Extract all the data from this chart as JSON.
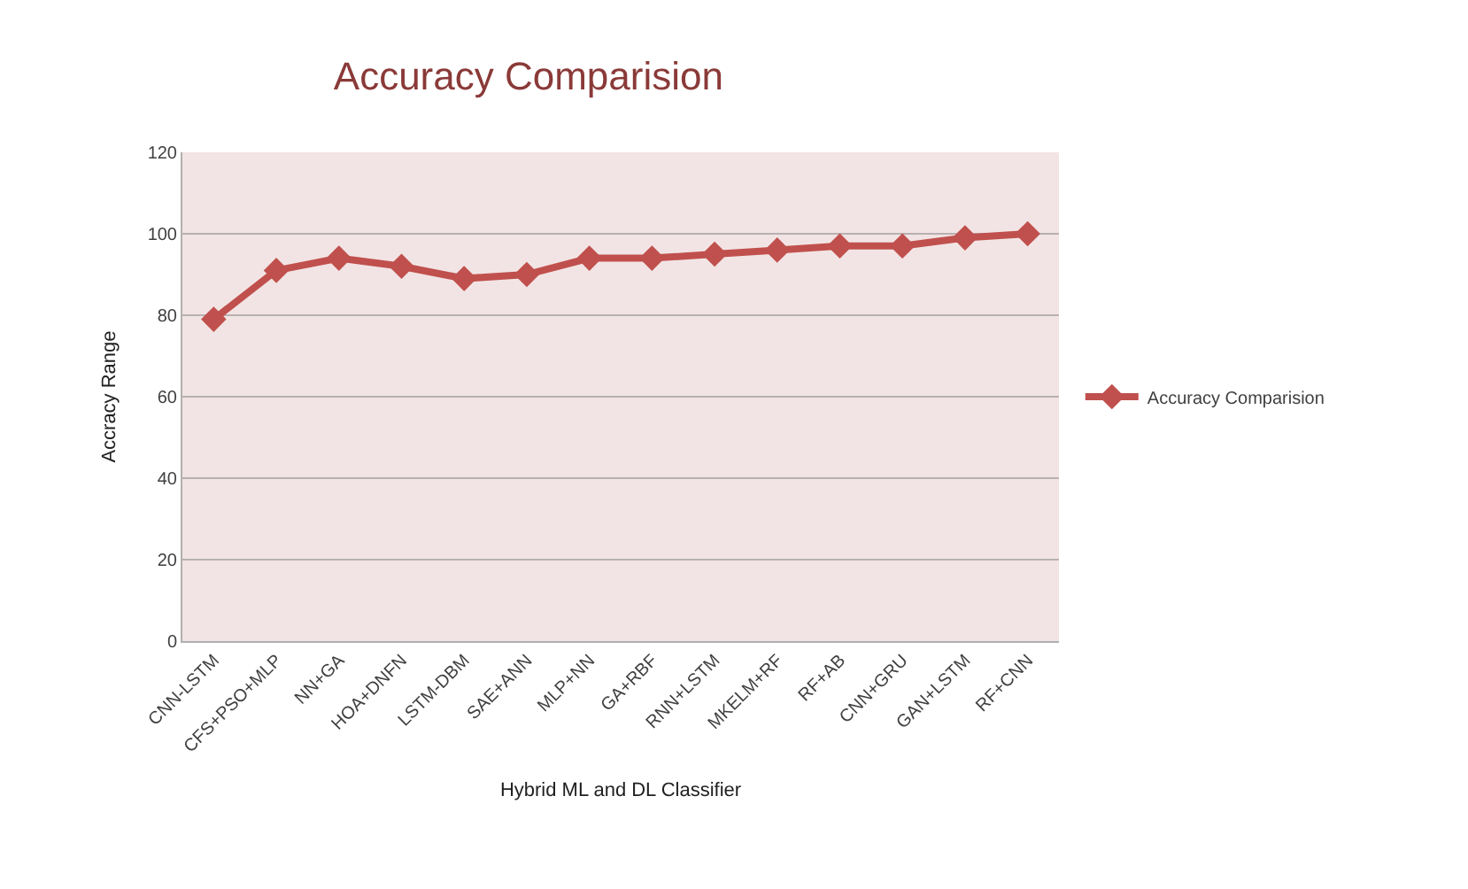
{
  "chart_data": {
    "type": "line",
    "title": "Accuracy Comparision",
    "xlabel": "Hybrid ML and DL Classifier",
    "ylabel": "Accracy Range",
    "categories": [
      "CNN-LSTM",
      "CFS+PSO+MLP",
      "NN+GA",
      "HOA+DNFN",
      "LSTM-DBM",
      "SAE+ANN",
      "MLP+NN",
      "GA+RBF",
      "RNN+LSTM",
      "MKELM+RF",
      "RF+AB",
      "CNN+GRU",
      "GAN+LSTM",
      "RF+CNN"
    ],
    "series": [
      {
        "name": "Accuracy Comparision",
        "color": "#c0504d",
        "values": [
          79,
          91,
          94,
          92,
          89,
          90,
          94,
          94,
          95,
          96,
          97,
          97,
          99,
          100
        ]
      }
    ],
    "ylim": [
      0,
      120
    ],
    "yticks": [
      0,
      20,
      40,
      60,
      80,
      100,
      120
    ],
    "grid": "y",
    "legend": "right",
    "marker": "diamond",
    "line_style": "solid"
  }
}
